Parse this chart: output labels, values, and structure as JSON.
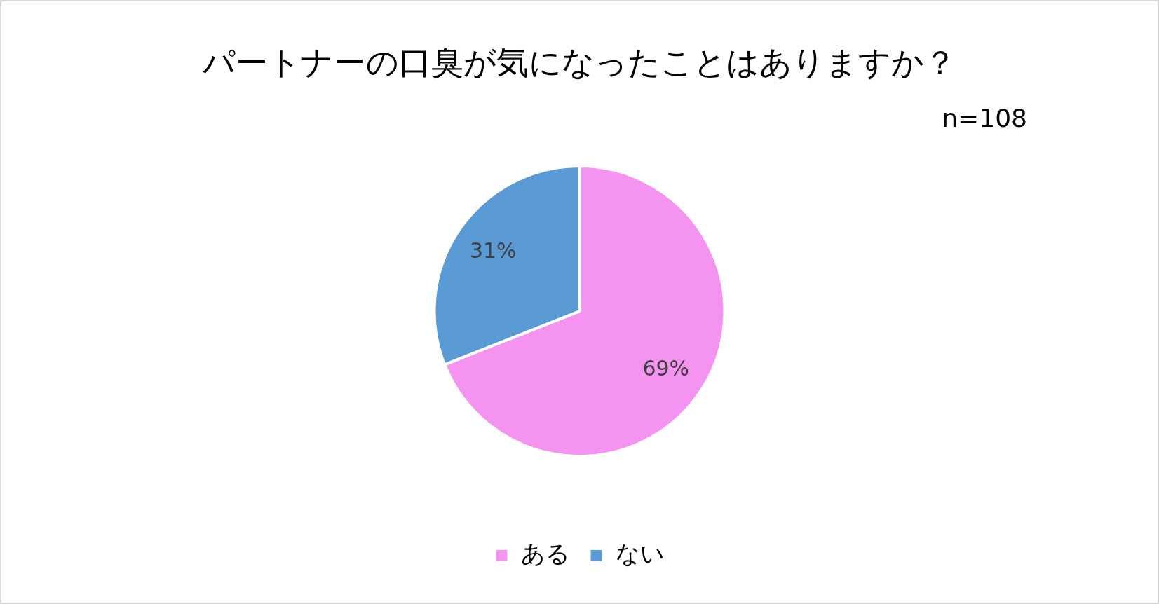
{
  "chart_data": {
    "type": "pie",
    "title": "パートナーの口臭が気になったことはありますか？",
    "annotations": [
      "n=108"
    ],
    "categories": [
      "ある",
      "ない"
    ],
    "values": [
      69,
      31
    ],
    "colors": [
      "#f593f0",
      "#5b9bd5"
    ],
    "value_labels": [
      "69%",
      "31%"
    ],
    "legend": "bottom"
  }
}
